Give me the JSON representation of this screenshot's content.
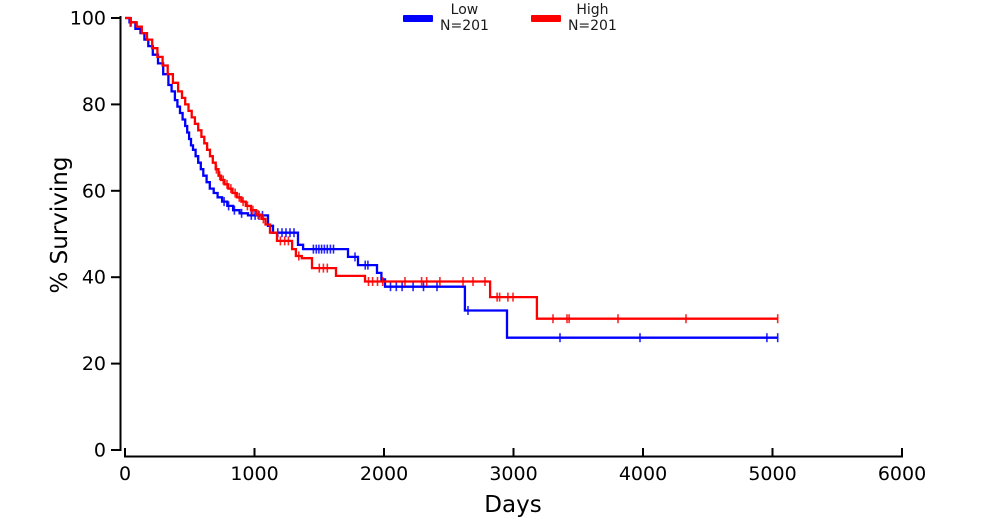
{
  "figure": {
    "background": "#ffffff",
    "title": ""
  },
  "legend": {
    "position": "top-center",
    "items": [
      {
        "label": "Low",
        "count": "N=201",
        "color": "#0000ff"
      },
      {
        "label": "High",
        "count": "N=201",
        "color": "#ff0000"
      }
    ]
  },
  "chart_data": {
    "type": "line",
    "subtype": "kaplan_meier_step",
    "title": "",
    "xlabel": "Days",
    "ylabel": "% Surviving",
    "xlim": [
      0,
      6000
    ],
    "ylim": [
      0,
      100
    ],
    "x_ticks": [
      0,
      1000,
      2000,
      3000,
      4000,
      5000,
      6000
    ],
    "y_ticks": [
      0,
      20,
      40,
      60,
      80,
      100
    ],
    "grid": false,
    "axis_color": "#000000",
    "legend_position": "top-center",
    "series": [
      {
        "name": "Low",
        "n_label": "N=201",
        "color": "#0000ff",
        "steps": [
          [
            0,
            100
          ],
          [
            35,
            99
          ],
          [
            80,
            97.5
          ],
          [
            120,
            96.5
          ],
          [
            150,
            95
          ],
          [
            180,
            93.5
          ],
          [
            215,
            91.5
          ],
          [
            255,
            89.5
          ],
          [
            295,
            87
          ],
          [
            335,
            84.5
          ],
          [
            360,
            83
          ],
          [
            385,
            81
          ],
          [
            405,
            79.5
          ],
          [
            425,
            78
          ],
          [
            445,
            76.5
          ],
          [
            465,
            75
          ],
          [
            480,
            73.5
          ],
          [
            495,
            72
          ],
          [
            510,
            70.5
          ],
          [
            525,
            69.5
          ],
          [
            545,
            68
          ],
          [
            565,
            66.5
          ],
          [
            585,
            65
          ],
          [
            605,
            63.5
          ],
          [
            630,
            62
          ],
          [
            655,
            60.5
          ],
          [
            685,
            59.5
          ],
          [
            715,
            58.5
          ],
          [
            750,
            57.5
          ],
          [
            790,
            56.5
          ],
          [
            835,
            55.5
          ],
          [
            885,
            54.8
          ],
          [
            950,
            54.3
          ],
          [
            1104,
            51.9
          ],
          [
            1143,
            50.3
          ],
          [
            1336,
            47.5
          ],
          [
            1375,
            46.5
          ],
          [
            1722,
            44.7
          ],
          [
            1799,
            42.8
          ],
          [
            1946,
            41
          ],
          [
            1980,
            39.5
          ],
          [
            2008,
            37.8
          ],
          [
            2625,
            32.3
          ],
          [
            2950,
            26
          ],
          [
            5040,
            26
          ]
        ],
        "censor_ticks": [
          [
            46,
            99
          ],
          [
            765,
            57.5
          ],
          [
            800,
            56.5
          ],
          [
            845,
            55.5
          ],
          [
            900,
            54.8
          ],
          [
            975,
            54.3
          ],
          [
            1005,
            54.3
          ],
          [
            1035,
            54.3
          ],
          [
            1062,
            54.3
          ],
          [
            1180,
            50.3
          ],
          [
            1212,
            50.3
          ],
          [
            1243,
            50.3
          ],
          [
            1274,
            50.3
          ],
          [
            1305,
            50.3
          ],
          [
            1455,
            46.5
          ],
          [
            1477,
            46.5
          ],
          [
            1497,
            46.5
          ],
          [
            1518,
            46.5
          ],
          [
            1540,
            46.5
          ],
          [
            1562,
            46.5
          ],
          [
            1586,
            46.5
          ],
          [
            1610,
            46.5
          ],
          [
            1776,
            44.7
          ],
          [
            1855,
            42.8
          ],
          [
            1876,
            42.8
          ],
          [
            2050,
            37.8
          ],
          [
            2095,
            37.8
          ],
          [
            2140,
            37.8
          ],
          [
            2225,
            37.8
          ],
          [
            2305,
            37.8
          ],
          [
            2409,
            37.8
          ],
          [
            2649,
            32.3
          ],
          [
            3359,
            26
          ],
          [
            3977,
            26
          ],
          [
            4957,
            26
          ],
          [
            5040,
            26
          ]
        ]
      },
      {
        "name": "High",
        "n_label": "N=201",
        "color": "#ff0000",
        "steps": [
          [
            0,
            100
          ],
          [
            45,
            99
          ],
          [
            90,
            98
          ],
          [
            130,
            96.5
          ],
          [
            170,
            95
          ],
          [
            210,
            93
          ],
          [
            250,
            91
          ],
          [
            290,
            89
          ],
          [
            330,
            87
          ],
          [
            370,
            85
          ],
          [
            410,
            83
          ],
          [
            440,
            81.5
          ],
          [
            465,
            80
          ],
          [
            490,
            78.5
          ],
          [
            515,
            77
          ],
          [
            540,
            75.5
          ],
          [
            565,
            74
          ],
          [
            590,
            72.5
          ],
          [
            612,
            71
          ],
          [
            634,
            69.5
          ],
          [
            656,
            68
          ],
          [
            678,
            66.5
          ],
          [
            700,
            65
          ],
          [
            722,
            63.5
          ],
          [
            742,
            62.5
          ],
          [
            768,
            61.5
          ],
          [
            798,
            60.5
          ],
          [
            830,
            59.5
          ],
          [
            863,
            58.5
          ],
          [
            898,
            57.5
          ],
          [
            933,
            56.5
          ],
          [
            973,
            55.5
          ],
          [
            1013,
            54.5
          ],
          [
            1053,
            53.5
          ],
          [
            1085,
            52.2
          ],
          [
            1120,
            50.3
          ],
          [
            1174,
            48.4
          ],
          [
            1290,
            46.5
          ],
          [
            1320,
            44.9
          ],
          [
            1365,
            44.4
          ],
          [
            1444,
            42.1
          ],
          [
            1629,
            40.3
          ],
          [
            1853,
            39
          ],
          [
            2819,
            35.4
          ],
          [
            3181,
            30.4
          ],
          [
            5040,
            30.4
          ]
        ],
        "censor_ticks": [
          [
            40,
            99
          ],
          [
            706,
            65
          ],
          [
            731,
            63.5
          ],
          [
            758,
            62.5
          ],
          [
            788,
            61.5
          ],
          [
            818,
            60.5
          ],
          [
            850,
            59.5
          ],
          [
            882,
            58.5
          ],
          [
            912,
            57.5
          ],
          [
            945,
            56.5
          ],
          [
            988,
            55.5
          ],
          [
            1028,
            54.5
          ],
          [
            1068,
            53.5
          ],
          [
            1200,
            48.4
          ],
          [
            1233,
            48.4
          ],
          [
            1262,
            48.4
          ],
          [
            1342,
            44.9
          ],
          [
            1500,
            42.1
          ],
          [
            1532,
            42.1
          ],
          [
            1562,
            42.1
          ],
          [
            1880,
            39
          ],
          [
            1912,
            39
          ],
          [
            1950,
            39
          ],
          [
            1990,
            39
          ],
          [
            2162,
            39
          ],
          [
            2290,
            39
          ],
          [
            2330,
            39
          ],
          [
            2432,
            39
          ],
          [
            2610,
            39
          ],
          [
            2687,
            39
          ],
          [
            2780,
            39
          ],
          [
            2873,
            35.4
          ],
          [
            2893,
            35.4
          ],
          [
            2957,
            35.4
          ],
          [
            2996,
            35.4
          ],
          [
            3305,
            30.4
          ],
          [
            3413,
            30.4
          ],
          [
            3429,
            30.4
          ],
          [
            3807,
            30.4
          ],
          [
            4332,
            30.4
          ],
          [
            5040,
            30.4
          ]
        ]
      }
    ]
  }
}
